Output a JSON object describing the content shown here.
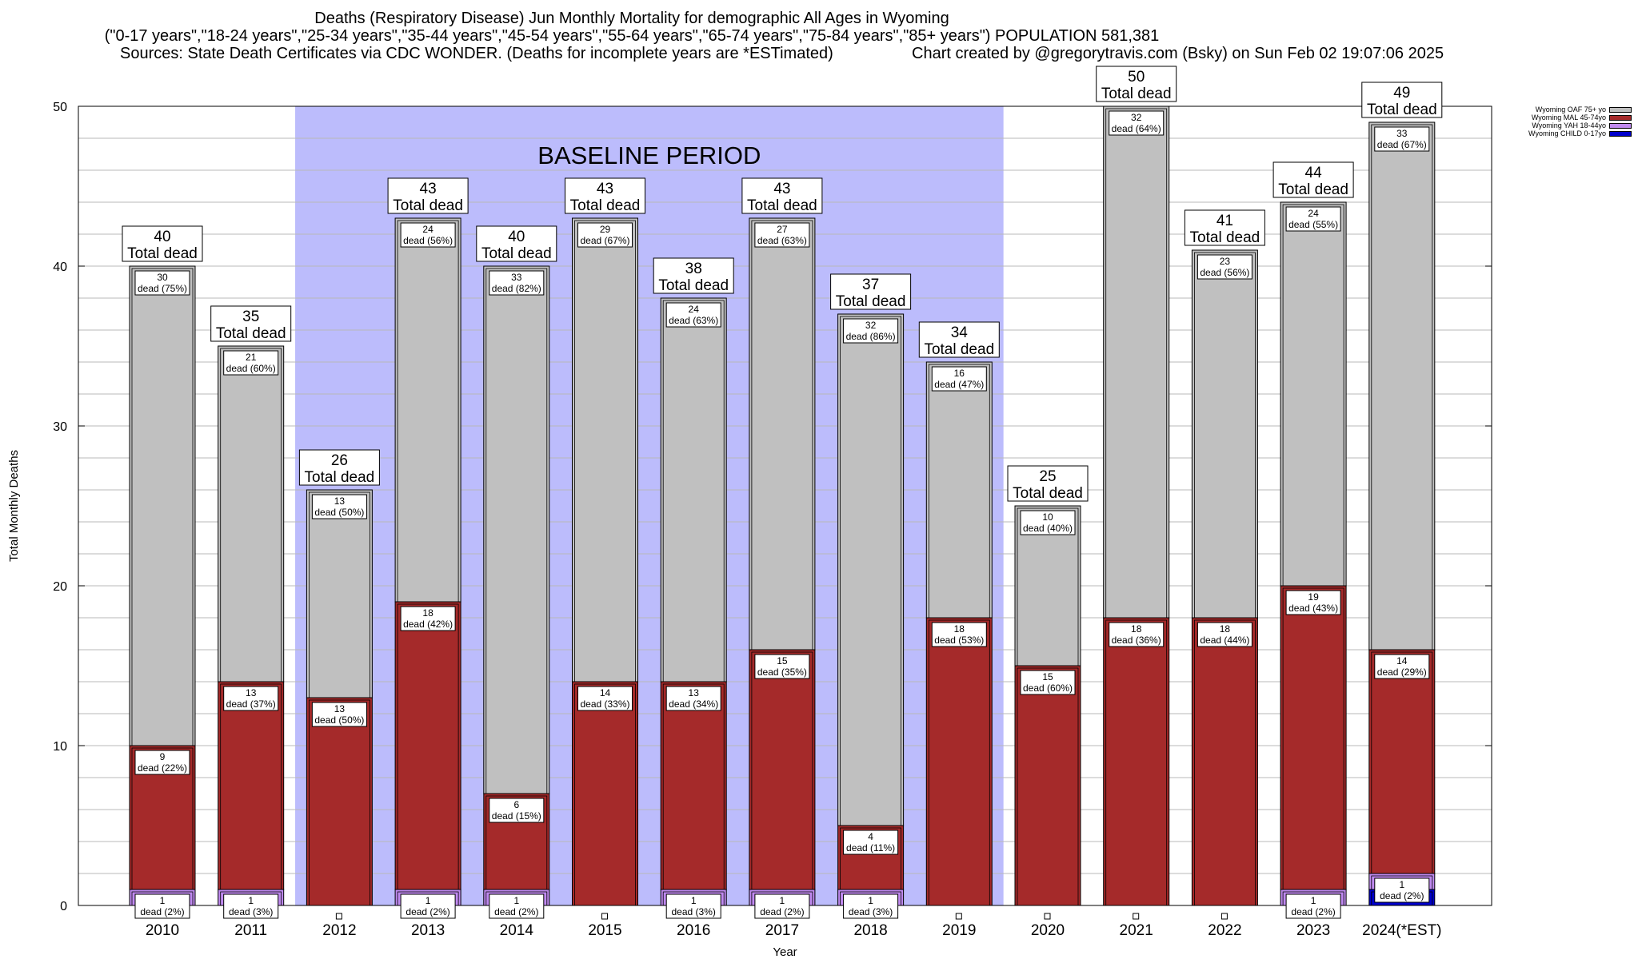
{
  "title": {
    "line1": "Deaths (Respiratory Disease) Jun Monthly Mortality for demographic All Ages in Wyoming",
    "line2": "(\"0-17 years\",\"18-24 years\",\"25-34 years\",\"35-44 years\",\"45-54 years\",\"55-64 years\",\"65-74 years\",\"75-84 years\",\"85+ years\") POPULATION 581,381",
    "sources": "Sources: State Death Certificates via CDC WONDER. (Deaths for incomplete years are *ESTimated)",
    "credit": "Chart created by @gregorytravis.com (Bsky) on Sun Feb 02 19:07:06 2025"
  },
  "legend": [
    {
      "label": "Wyoming OAF 75+ yo",
      "color": "#c0c0c0"
    },
    {
      "label": "Wyoming MAL 45-74yo",
      "color": "#a52a2a"
    },
    {
      "label": "Wyoming YAH 18-44yo",
      "color": "#c08af0"
    },
    {
      "label": "Wyoming CHILD 0-17yo",
      "color": "#0000cc"
    }
  ],
  "chart_data": {
    "type": "bar",
    "stacked": true,
    "xlabel": "Year",
    "ylabel": "Total Monthly Deaths",
    "ylim": [
      0,
      50
    ],
    "yticks": [
      0,
      10,
      20,
      30,
      40,
      50
    ],
    "grid": true,
    "legend_position": "top-right",
    "categories": [
      "2010",
      "2011",
      "2012",
      "2013",
      "2014",
      "2015",
      "2016",
      "2017",
      "2018",
      "2019",
      "2020",
      "2021",
      "2022",
      "2023",
      "2024(*EST)"
    ],
    "series": [
      {
        "name": "Wyoming CHILD 0-17yo",
        "color": "#0000cc",
        "values": [
          0,
          0,
          0,
          0,
          0,
          0,
          0,
          0,
          0,
          0,
          0,
          0,
          0,
          0,
          1
        ]
      },
      {
        "name": "Wyoming YAH 18-44yo",
        "color": "#c08af0",
        "values": [
          1,
          1,
          0,
          1,
          1,
          0,
          1,
          1,
          1,
          0,
          0,
          0,
          0,
          1,
          1
        ]
      },
      {
        "name": "Wyoming MAL 45-74yo",
        "color": "#a52a2a",
        "values": [
          9,
          13,
          13,
          18,
          6,
          14,
          13,
          15,
          4,
          18,
          15,
          18,
          18,
          19,
          14
        ]
      },
      {
        "name": "Wyoming OAF 75+ yo",
        "color": "#c0c0c0",
        "values": [
          30,
          21,
          13,
          24,
          33,
          29,
          24,
          27,
          32,
          16,
          10,
          32,
          23,
          24,
          33
        ]
      }
    ],
    "totals": [
      40,
      35,
      26,
      43,
      40,
      43,
      38,
      43,
      37,
      34,
      25,
      50,
      41,
      44,
      49
    ],
    "total_label": "Total dead",
    "segment_labels": {
      "yah": [
        "1|dead (2%)",
        "1|dead (3%)",
        "",
        "1|dead (2%)",
        "1|dead (2%)",
        "",
        "1|dead (3%)",
        "1|dead (2%)",
        "1|dead (3%)",
        "",
        "",
        "",
        "",
        "1|dead (2%)",
        "1|dead (2%)"
      ],
      "mal": [
        "9|dead (22%)",
        "13|dead (37%)",
        "13|dead (50%)",
        "18|dead (42%)",
        "6|dead (15%)",
        "14|dead (33%)",
        "13|dead (34%)",
        "15|dead (35%)",
        "4|dead (11%)",
        "18|dead (53%)",
        "15|dead (60%)",
        "18|dead (36%)",
        "18|dead (44%)",
        "19|dead (43%)",
        "14|dead (29%)"
      ],
      "oaf": [
        "30|dead (75%)",
        "21|dead (60%)",
        "13|dead (50%)",
        "24|dead (56%)",
        "33|dead (82%)",
        "29|dead (67%)",
        "24|dead (63%)",
        "27|dead (63%)",
        "32|dead (86%)",
        "16|dead (47%)",
        "10|dead (40%)",
        "32|dead (64%)",
        "23|dead (56%)",
        "24|dead (55%)",
        "33|dead (67%)"
      ]
    },
    "baseline": {
      "label": "BASELINE PERIOD",
      "from": "2012",
      "to": "2019",
      "color": "#bcbcfc"
    }
  }
}
